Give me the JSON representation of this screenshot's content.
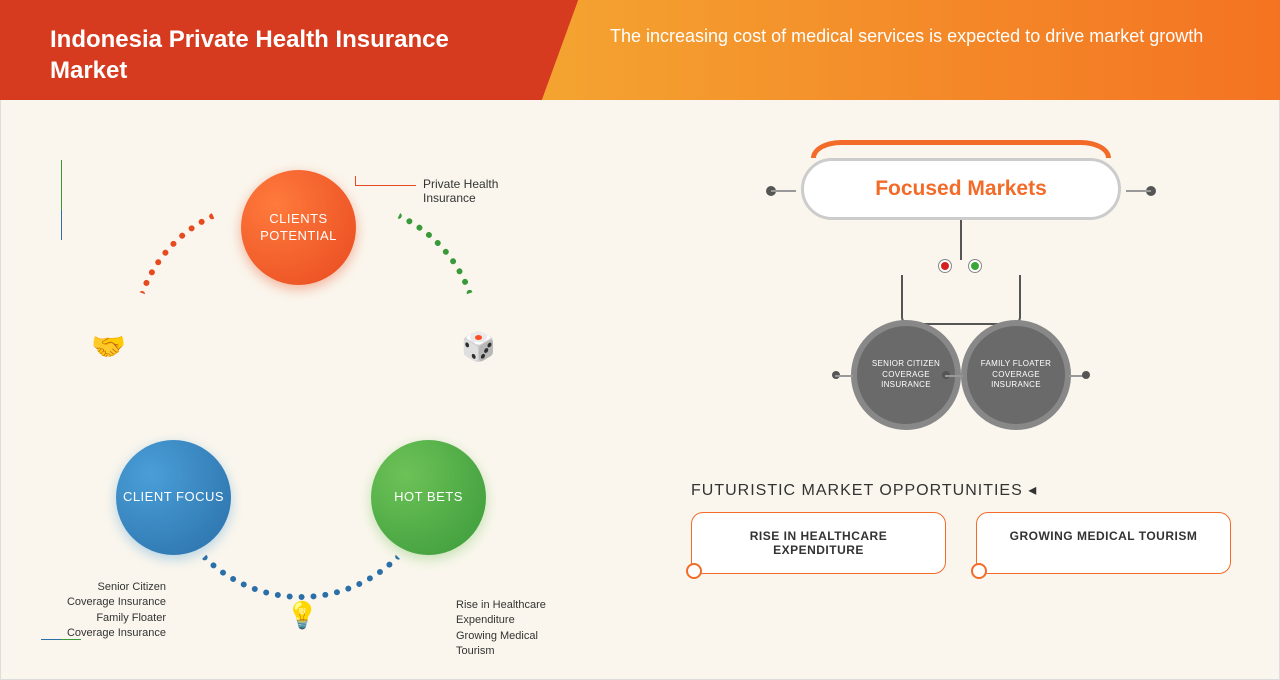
{
  "header": {
    "title": "Indonesia Private Health Insurance Market",
    "subtitle": "The increasing cost of medical services is expected to drive market growth",
    "left_bg": "#d63a1f",
    "right_grad_from": "#f4a531",
    "right_grad_to": "#f47322"
  },
  "cycle": {
    "top": {
      "label": "CLIENTS POTENTIAL",
      "lead": "Private Health Insurance",
      "color_from": "#ff7a3c",
      "color_to": "#e84a1f"
    },
    "left": {
      "label": "CLIENT FOCUS",
      "lead": "Senior Citizen Coverage Insurance\nFamily Floater Coverage Insurance",
      "color_from": "#4a9ed8",
      "color_to": "#2a6fa8"
    },
    "right": {
      "label": "HOT BETS",
      "lead": "Rise in Healthcare Expenditure\nGrowing Medical Tourism",
      "color_from": "#6dc257",
      "color_to": "#3a9a3a"
    },
    "icons": {
      "handshake": "🤝",
      "dice": "🎲",
      "bulb": "💡"
    },
    "arc_colors": {
      "tl": "#e84a1f",
      "tr": "#3a9a3a",
      "bot": "#2a6fa8"
    }
  },
  "focused": {
    "title": "Focused Markets",
    "pill_border": "#f26b28",
    "nodes": [
      {
        "label": "SENIOR CITIZEN COVERAGE INSURANCE"
      },
      {
        "label": "FAMILY FLOATER COVERAGE INSURANCE"
      }
    ],
    "node_bg": "#6a6a6a",
    "light_colors": {
      "red": "#d62020",
      "green": "#3aa63a"
    }
  },
  "opportunities": {
    "title": "FUTURISTIC MARKET OPPORTUNITIES",
    "cards": [
      "RISE IN HEALTHCARE EXPENDITURE",
      "GROWING MEDICAL TOURISM"
    ],
    "card_border": "#f26b28"
  },
  "page_bg": "#faf6ed"
}
